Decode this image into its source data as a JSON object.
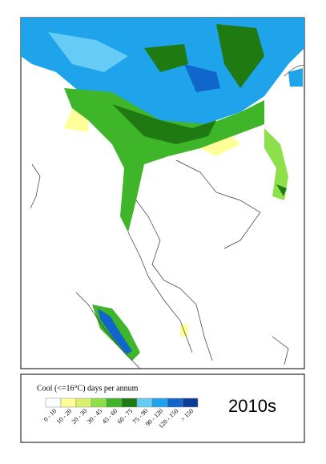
{
  "legend": {
    "title": "Cool (<=16°C) days per annum",
    "items": [
      {
        "label": "0 - 10",
        "color": "#ffffff"
      },
      {
        "label": "10 - 20",
        "color": "#ffff99"
      },
      {
        "label": "20 - 30",
        "color": "#d9f06a"
      },
      {
        "label": "30 - 45",
        "color": "#8ee04a"
      },
      {
        "label": "45 - 60",
        "color": "#3fb52a"
      },
      {
        "label": "60 - 75",
        "color": "#1f7a12"
      },
      {
        "label": "75 - 90",
        "color": "#66ccf5"
      },
      {
        "label": "90 - 120",
        "color": "#1fa3ea"
      },
      {
        "label": "120 - 150",
        "color": "#1166cc"
      },
      {
        "label": "> 150",
        "color": "#0a3d99"
      }
    ]
  },
  "period": "2010s"
}
